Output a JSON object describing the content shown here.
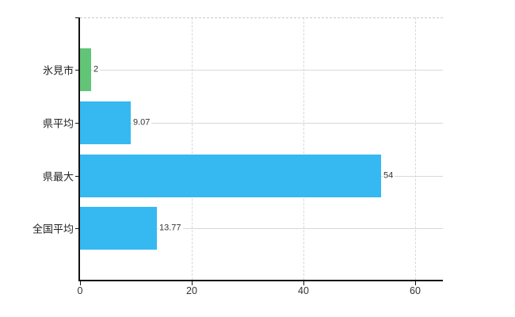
{
  "chart_data": {
    "type": "bar",
    "orientation": "horizontal",
    "categories": [
      "氷見市",
      "県平均",
      "県最大",
      "全国平均"
    ],
    "values": [
      2,
      9.07,
      54,
      13.77
    ],
    "value_labels": [
      "2",
      "9.07",
      "54",
      "13.77"
    ],
    "bar_colors": [
      "#62c476",
      "#36b9f1",
      "#36b9f1",
      "#36b9f1"
    ],
    "x_ticks": [
      0,
      20,
      40,
      60
    ],
    "x_tick_labels": [
      "0",
      "20",
      "40",
      "60"
    ],
    "xlim": [
      0,
      65
    ],
    "grid": true,
    "legend": false,
    "title": "",
    "xlabel": "",
    "ylabel": ""
  }
}
